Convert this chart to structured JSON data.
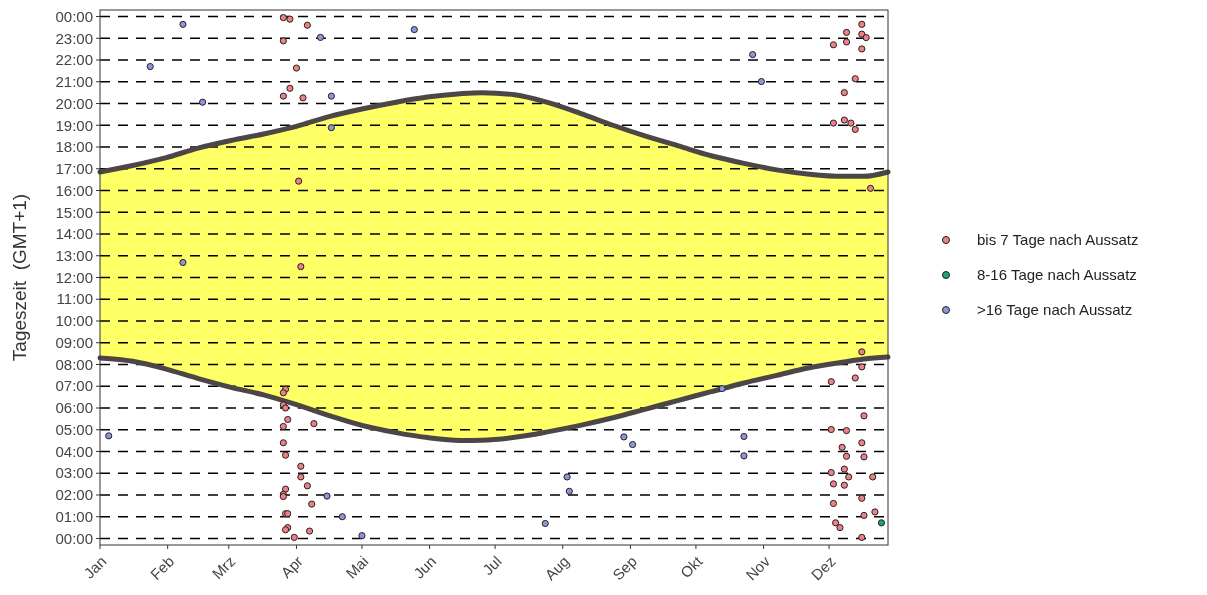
{
  "chart_data": {
    "type": "scatter",
    "ylabel": "Tageszeit  (GMT+1)",
    "xlim": [
      "--01-01",
      "--12-28"
    ],
    "ylim": [
      -0.3,
      24.3
    ],
    "xticks": [
      {
        "value": "--01-01",
        "label": "Jan"
      },
      {
        "value": "--02-01",
        "label": "Feb"
      },
      {
        "value": "--03-01",
        "label": "Mrz"
      },
      {
        "value": "--04-01",
        "label": "Apr"
      },
      {
        "value": "--05-01",
        "label": "Mai"
      },
      {
        "value": "--06-01",
        "label": "Jun"
      },
      {
        "value": "--07-01",
        "label": "Jul"
      },
      {
        "value": "--08-01",
        "label": "Aug"
      },
      {
        "value": "--09-01",
        "label": "Sep"
      },
      {
        "value": "--10-01",
        "label": "Okt"
      },
      {
        "value": "--11-01",
        "label": "Nov"
      },
      {
        "value": "--12-01",
        "label": "Dez"
      }
    ],
    "yticks": [
      {
        "value": 0,
        "label": "00:00"
      },
      {
        "value": 1,
        "label": "01:00"
      },
      {
        "value": 2,
        "label": "02:00"
      },
      {
        "value": 3,
        "label": "03:00"
      },
      {
        "value": 4,
        "label": "04:00"
      },
      {
        "value": 5,
        "label": "05:00"
      },
      {
        "value": 6,
        "label": "06:00"
      },
      {
        "value": 7,
        "label": "07:00"
      },
      {
        "value": 8,
        "label": "08:00"
      },
      {
        "value": 9,
        "label": "09:00"
      },
      {
        "value": 10,
        "label": "10:00"
      },
      {
        "value": 11,
        "label": "11:00"
      },
      {
        "value": 12,
        "label": "12:00"
      },
      {
        "value": 13,
        "label": "13:00"
      },
      {
        "value": 14,
        "label": "14:00"
      },
      {
        "value": 15,
        "label": "15:00"
      },
      {
        "value": 16,
        "label": "16:00"
      },
      {
        "value": 17,
        "label": "17:00"
      },
      {
        "value": 18,
        "label": "18:00"
      },
      {
        "value": 19,
        "label": "19:00"
      },
      {
        "value": 20,
        "label": "20:00"
      },
      {
        "value": 21,
        "label": "21:00"
      },
      {
        "value": 22,
        "label": "22:00"
      },
      {
        "value": 23,
        "label": "23:00"
      },
      {
        "value": 24,
        "label": "00:00"
      }
    ],
    "grid": "y",
    "legend": "right",
    "series": [
      {
        "type": "line",
        "color": "#4d4646",
        "x": [
          "--01-01",
          "--01-16",
          "--01-31",
          "--02-15",
          "--03-02",
          "--03-17",
          "--04-01",
          "--04-16",
          "--05-01",
          "--05-16",
          "--05-31",
          "--06-15",
          "--06-25",
          "--07-10",
          "--07-25",
          "--08-09",
          "--08-24",
          "--09-08",
          "--09-23",
          "--10-08",
          "--10-23",
          "--11-07",
          "--11-22",
          "--12-07",
          "--12-17",
          "--12-28"
        ],
        "values": [
          8.3,
          8.15,
          7.8,
          7.35,
          6.95,
          6.6,
          6.15,
          5.65,
          5.2,
          4.88,
          4.64,
          4.51,
          4.52,
          4.65,
          4.9,
          5.2,
          5.55,
          5.95,
          6.35,
          6.75,
          7.15,
          7.5,
          7.85,
          8.1,
          8.25,
          8.34
        ]
      },
      {
        "type": "line",
        "color": "#4d4646",
        "upper": [
          16.85,
          17.15,
          17.5,
          17.95,
          18.3,
          18.6,
          18.95,
          19.4,
          19.75,
          20.05,
          20.3,
          20.45,
          20.5,
          20.4,
          20.05,
          19.55,
          19.0,
          18.5,
          18.05,
          17.6,
          17.25,
          16.95,
          16.75,
          16.65,
          16.65,
          16.85
        ],
        "x": [
          "--01-01",
          "--01-16",
          "--01-31",
          "--02-15",
          "--03-02",
          "--03-17",
          "--04-01",
          "--04-16",
          "--05-01",
          "--05-16",
          "--05-31",
          "--06-15",
          "--06-25",
          "--07-10",
          "--07-25",
          "--08-09",
          "--08-24",
          "--09-08",
          "--09-23",
          "--10-08",
          "--10-23",
          "--11-07",
          "--11-22",
          "--12-07",
          "--12-17",
          "--12-28"
        ],
        "values": [
          16.85,
          17.15,
          17.5,
          17.95,
          18.3,
          18.6,
          18.95,
          19.4,
          19.75,
          20.05,
          20.3,
          20.45,
          20.5,
          20.4,
          20.05,
          19.55,
          19.0,
          18.5,
          18.05,
          17.6,
          17.25,
          16.95,
          16.75,
          16.65,
          16.65,
          16.85
        ],
        "lower": [
          8.3,
          8.15,
          7.8,
          7.35,
          6.95,
          6.6,
          6.15,
          5.65,
          5.2,
          4.88,
          4.64,
          4.51,
          4.52,
          4.65,
          4.9,
          5.2,
          5.55,
          5.95,
          6.35,
          6.75,
          7.15,
          7.5,
          7.85,
          8.1,
          8.25,
          8.34
        ]
      },
      {
        "name": "bis 7 Tage nach Aussatz",
        "color": "#f07f86",
        "marker": "circle",
        "x": [
          "--03-26",
          "--03-29",
          "--04-06",
          "--03-26",
          "--04-01",
          "--03-29",
          "--03-26",
          "--04-04",
          "--04-02",
          "--04-03",
          "--03-27",
          "--03-26",
          "--03-26",
          "--03-27",
          "--03-28",
          "--03-26",
          "--04-09",
          "--03-26",
          "--03-27",
          "--04-03",
          "--04-03",
          "--04-06",
          "--03-27",
          "--03-26",
          "--03-26",
          "--04-08",
          "--03-27",
          "--03-28",
          "--03-28",
          "--03-27",
          "--04-07",
          "--03-31",
          "--12-16",
          "--12-09",
          "--12-16",
          "--12-18",
          "--12-03",
          "--12-09",
          "--12-16",
          "--12-13",
          "--12-08",
          "--12-03",
          "--12-08",
          "--12-11",
          "--12-13",
          "--12-20",
          "--12-16",
          "--12-16",
          "--12-13",
          "--12-02",
          "--12-17",
          "--12-02",
          "--12-09",
          "--12-16",
          "--12-07",
          "--12-09",
          "--12-17",
          "--12-02",
          "--12-08",
          "--12-10",
          "--12-21",
          "--12-03",
          "--12-08",
          "--12-16",
          "--12-03",
          "--12-22",
          "--12-17",
          "--12-04",
          "--12-06",
          "--12-16"
        ],
        "values": [
          23.95,
          23.88,
          23.6,
          22.88,
          21.63,
          20.7,
          20.34,
          20.26,
          16.43,
          12.5,
          6.86,
          6.7,
          6.14,
          6.0,
          5.47,
          5.15,
          5.28,
          4.4,
          3.83,
          3.32,
          2.83,
          2.42,
          2.27,
          2.03,
          1.93,
          1.58,
          1.14,
          1.14,
          0.5,
          0.4,
          0.34,
          0.05,
          23.64,
          23.27,
          23.19,
          23.03,
          22.7,
          22.83,
          22.51,
          21.14,
          20.5,
          19.1,
          19.24,
          19.1,
          18.81,
          16.1,
          8.58,
          7.89,
          7.38,
          7.21,
          5.64,
          5.01,
          4.96,
          4.4,
          4.19,
          3.78,
          3.75,
          3.03,
          3.19,
          2.83,
          2.83,
          2.51,
          2.45,
          1.85,
          1.61,
          1.22,
          1.06,
          0.72,
          0.5,
          0.05
        ]
      },
      {
        "name": "8-16 Tage nach Aussatz",
        "color": "#1fa36b",
        "marker": "circle",
        "x": [
          "--12-25"
        ],
        "values": [
          0.72
        ]
      },
      {
        "name": ">16 Tage nach Aussatz",
        "color": "#8c96dc",
        "marker": "circle",
        "x": [
          "--01-05",
          "--01-24",
          "--02-08",
          "--02-08",
          "--02-17",
          "--04-12",
          "--04-17",
          "--04-17",
          "--04-15",
          "--04-22",
          "--05-01",
          "--05-25",
          "--07-24",
          "--08-03",
          "--08-04",
          "--08-29",
          "--09-02",
          "--10-13",
          "--10-23",
          "--10-23",
          "--10-27",
          "--10-31"
        ],
        "values": [
          4.72,
          21.7,
          23.64,
          12.69,
          20.06,
          23.04,
          20.34,
          18.89,
          1.95,
          1.0,
          0.13,
          23.4,
          0.69,
          2.83,
          2.17,
          4.67,
          4.32,
          6.89,
          4.69,
          3.8,
          22.25,
          21.01
        ]
      }
    ]
  }
}
